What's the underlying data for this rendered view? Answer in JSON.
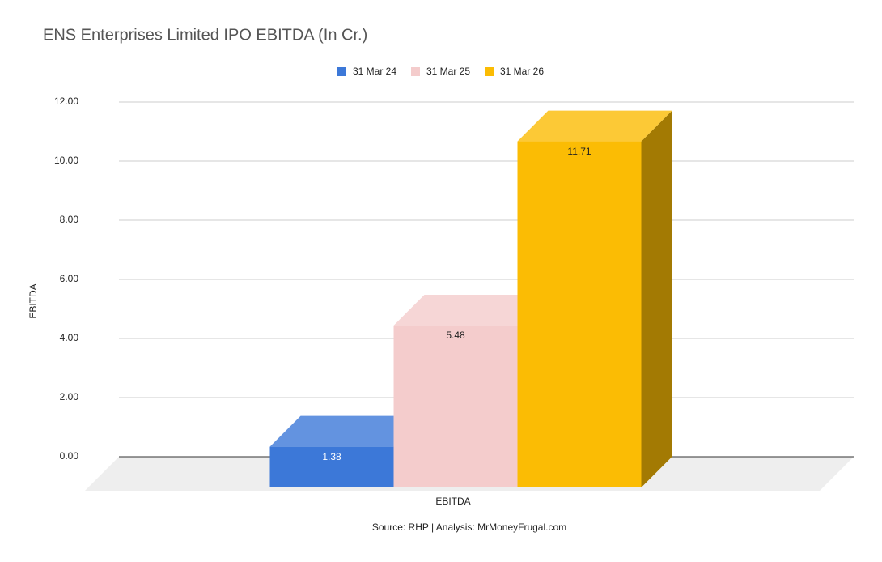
{
  "chart_data": {
    "type": "bar3d",
    "title": "ENS Enterprises Limited IPO EBITDA (In Cr.)",
    "categories": [
      "EBITDA"
    ],
    "x_label": "EBITDA",
    "y_label": "EBITDA",
    "series": [
      {
        "name": "31 Mar 24",
        "color": "#3c78d8",
        "values": [
          1.38
        ]
      },
      {
        "name": "31 Mar 25",
        "color": "#f4cccc",
        "values": [
          5.48
        ]
      },
      {
        "name": "31 Mar 26",
        "color": "#fbbc04",
        "values": [
          11.71
        ]
      }
    ],
    "ylim": [
      0,
      12
    ],
    "yticks": [
      {
        "value": 0,
        "label": "0.00"
      },
      {
        "value": 2,
        "label": "2.00"
      },
      {
        "value": 4,
        "label": "4.00"
      },
      {
        "value": 6,
        "label": "6.00"
      },
      {
        "value": 8,
        "label": "8.00"
      },
      {
        "value": 10,
        "label": "10.00"
      },
      {
        "value": 12,
        "label": "12.00"
      }
    ],
    "grid": true,
    "legend": "top",
    "source": "Source: RHP | Analysis: MrMoneyFrugal.com"
  }
}
